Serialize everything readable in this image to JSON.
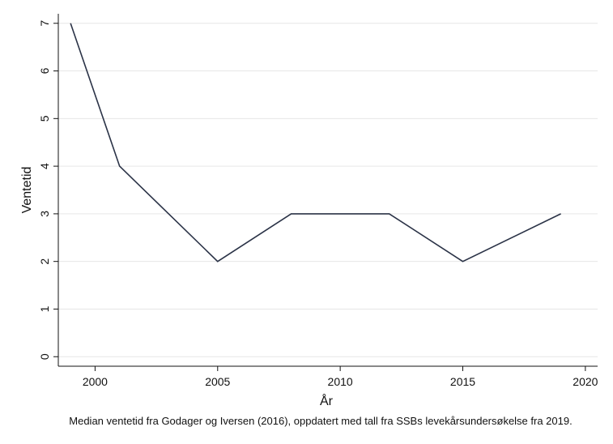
{
  "chart_data": {
    "type": "line",
    "title": "",
    "xlabel": "År",
    "ylabel": "Ventetid",
    "caption": "Median ventetid fra Godager og Iversen (2016), oppdatert med tall fra SSBs levekårsundersøkelse fra 2019.",
    "x": [
      1999,
      2001,
      2005,
      2008,
      2012,
      2015,
      2019
    ],
    "series": [
      {
        "values": [
          7,
          4,
          2,
          3,
          3,
          2,
          3
        ]
      }
    ],
    "xlim": [
      1998.5,
      2020.5
    ],
    "ylim": [
      -0.2,
      7.2
    ],
    "xticks": [
      "2000",
      "2005",
      "2010",
      "2015",
      "2020"
    ],
    "yticks": [
      "0",
      "1",
      "2",
      "3",
      "4",
      "5",
      "6",
      "7"
    ],
    "grid": true,
    "legend": "none",
    "colors": {
      "line": "#2b3347",
      "grid": "#e6e6e6",
      "axis": "#111111"
    }
  }
}
